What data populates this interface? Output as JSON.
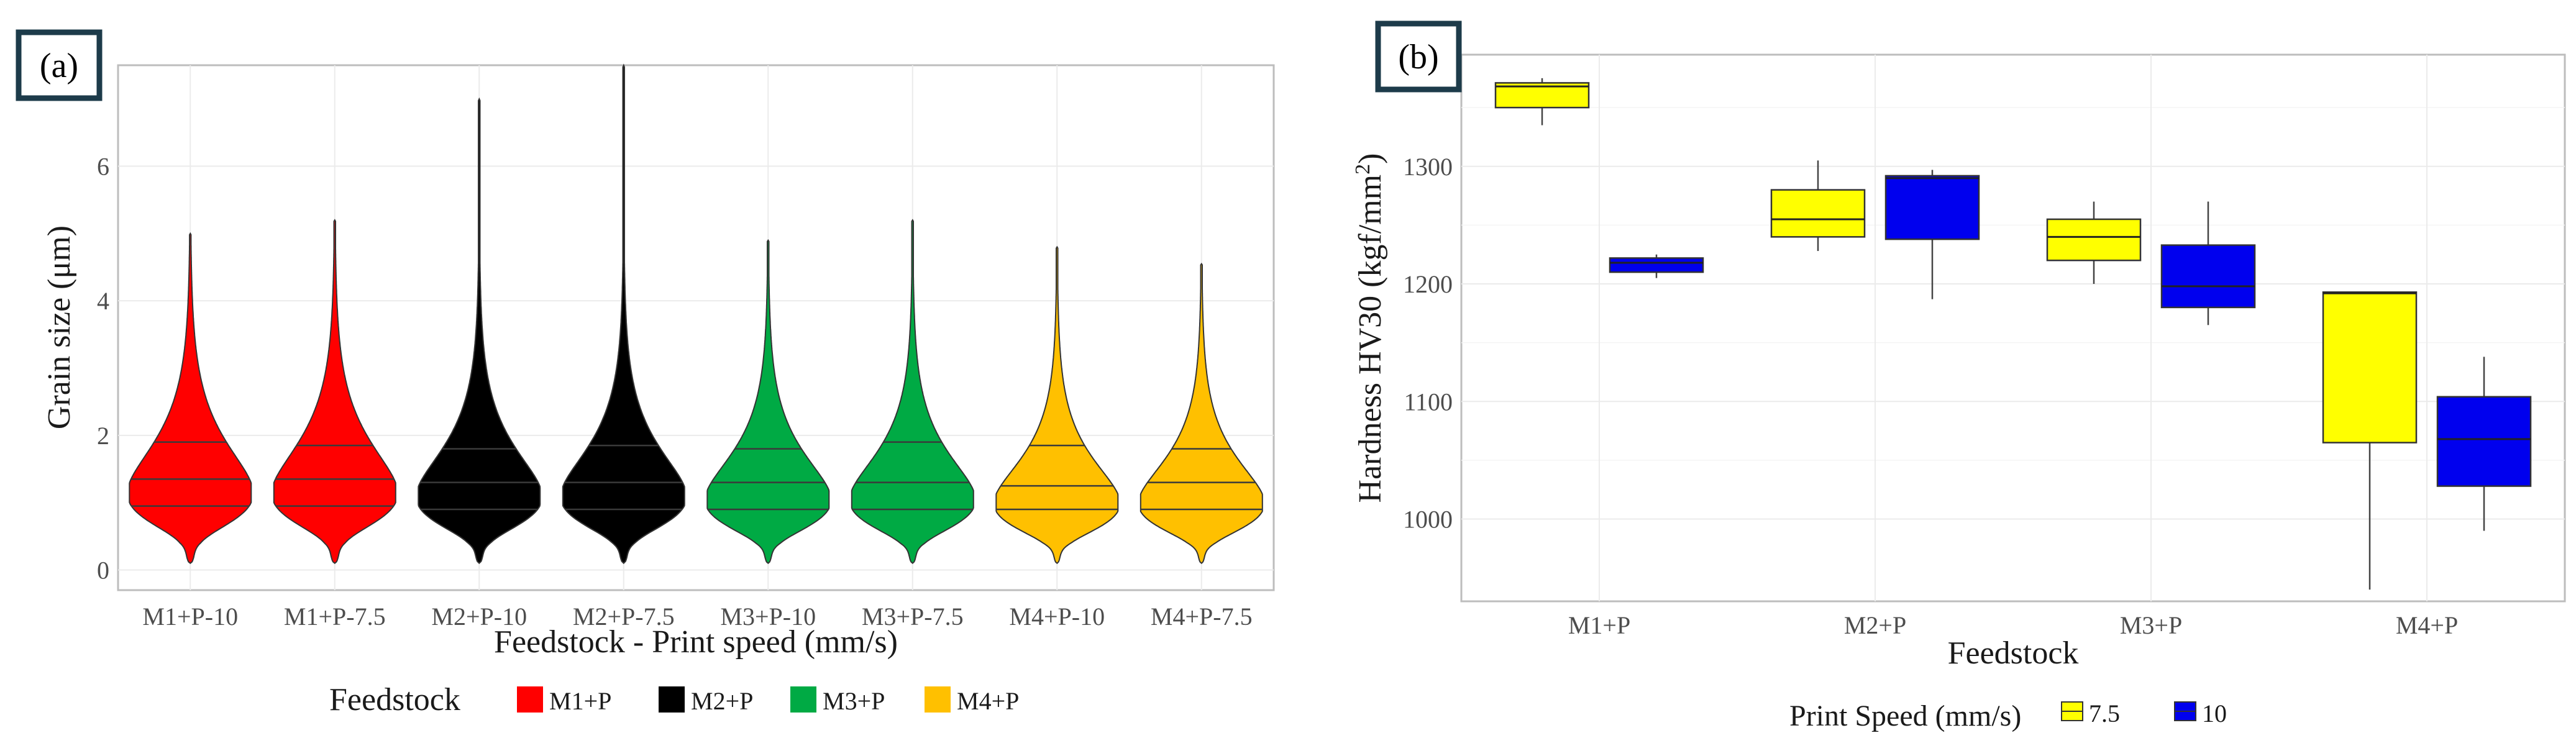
{
  "colors": {
    "background": "#ffffff",
    "panel_frame": "#bdbdbd",
    "grid": "#ebebeb",
    "panel_label_border": "#1d3b4a",
    "M1+P": "#ff0000",
    "M2+P": "#000000",
    "M3+P": "#00aa44",
    "M4+P": "#ffc000",
    "speed_7.5": "#ffff00",
    "speed_10": "#0000ee"
  },
  "chart_data": [
    {
      "panel_label": "(a)",
      "type": "violin",
      "title": "",
      "xlabel": "Feedstock - Print speed (mm/s)",
      "ylabel": "Grain size (μm)",
      "ylim": [
        -0.3,
        7.5
      ],
      "yticks": [
        {
          "value": 0,
          "label": "0"
        },
        {
          "value": 2,
          "label": "2"
        },
        {
          "value": 4,
          "label": "4"
        },
        {
          "value": 6,
          "label": "6"
        }
      ],
      "categories": [
        "M1+P-10",
        "M1+P-7.5",
        "M2+P-10",
        "M2+P-7.5",
        "M3+P-10",
        "M3+P-7.5",
        "M4+P-10",
        "M4+P-7.5"
      ],
      "series": [
        {
          "category": "M1+P-10",
          "feedstock": "M1+P",
          "min": 0.1,
          "max": 5.0,
          "q1": 0.95,
          "median": 1.35,
          "q3": 1.9,
          "mode": 1.15
        },
        {
          "category": "M1+P-7.5",
          "feedstock": "M1+P",
          "min": 0.1,
          "max": 5.2,
          "q1": 0.95,
          "median": 1.35,
          "q3": 1.85,
          "mode": 1.15
        },
        {
          "category": "M2+P-10",
          "feedstock": "M2+P",
          "min": 0.1,
          "max": 7.0,
          "q1": 0.9,
          "median": 1.3,
          "q3": 1.8,
          "mode": 1.1
        },
        {
          "category": "M2+P-7.5",
          "feedstock": "M2+P",
          "min": 0.1,
          "max": 7.5,
          "q1": 0.9,
          "median": 1.3,
          "q3": 1.85,
          "mode": 1.1
        },
        {
          "category": "M3+P-10",
          "feedstock": "M3+P",
          "min": 0.1,
          "max": 4.9,
          "q1": 0.9,
          "median": 1.3,
          "q3": 1.8,
          "mode": 1.05
        },
        {
          "category": "M3+P-7.5",
          "feedstock": "M3+P",
          "min": 0.1,
          "max": 5.2,
          "q1": 0.9,
          "median": 1.3,
          "q3": 1.9,
          "mode": 1.05
        },
        {
          "category": "M4+P-10",
          "feedstock": "M4+P",
          "min": 0.1,
          "max": 4.8,
          "q1": 0.9,
          "median": 1.25,
          "q3": 1.85,
          "mode": 1.0
        },
        {
          "category": "M4+P-7.5",
          "feedstock": "M4+P",
          "min": 0.1,
          "max": 4.55,
          "q1": 0.9,
          "median": 1.3,
          "q3": 1.8,
          "mode": 1.0
        }
      ],
      "legend": {
        "title": "Feedstock",
        "position": "bottom",
        "entries": [
          "M1+P",
          "M2+P",
          "M3+P",
          "M4+P"
        ]
      }
    },
    {
      "panel_label": "(b)",
      "type": "box",
      "title": "",
      "xlabel": "Feedstock",
      "ylabel": "Hardness HV30 (kgf/mm²)",
      "ylim": [
        930,
        1395
      ],
      "yticks": [
        {
          "value": 1000,
          "label": "1000"
        },
        {
          "value": 1100,
          "label": "1100"
        },
        {
          "value": 1200,
          "label": "1200"
        },
        {
          "value": 1300,
          "label": "1300"
        }
      ],
      "categories": [
        "M1+P",
        "M2+P",
        "M3+P",
        "M4+P"
      ],
      "series": [
        {
          "name": "7.5",
          "boxes": [
            {
              "category": "M1+P",
              "min": 1335,
              "q1": 1350,
              "median": 1368,
              "q3": 1371,
              "max": 1375
            },
            {
              "category": "M2+P",
              "min": 1228,
              "q1": 1240,
              "median": 1255,
              "q3": 1280,
              "max": 1305
            },
            {
              "category": "M3+P",
              "min": 1200,
              "q1": 1220,
              "median": 1240,
              "q3": 1255,
              "max": 1270
            },
            {
              "category": "M4+P",
              "min": 940,
              "q1": 1065,
              "median": 1192,
              "q3": 1193,
              "max": 1193
            }
          ]
        },
        {
          "name": "10",
          "boxes": [
            {
              "category": "M1+P",
              "min": 1205,
              "q1": 1210,
              "median": 1218,
              "q3": 1222,
              "max": 1225
            },
            {
              "category": "M2+P",
              "min": 1187,
              "q1": 1238,
              "median": 1290,
              "q3": 1292,
              "max": 1297
            },
            {
              "category": "M3+P",
              "min": 1165,
              "q1": 1180,
              "median": 1198,
              "q3": 1233,
              "max": 1270
            },
            {
              "category": "M4+P",
              "min": 990,
              "q1": 1028,
              "median": 1068,
              "q3": 1104,
              "max": 1138
            }
          ]
        }
      ],
      "legend": {
        "title": "Print Speed (mm/s)",
        "position": "bottom",
        "entries": [
          "7.5",
          "10"
        ]
      }
    }
  ]
}
